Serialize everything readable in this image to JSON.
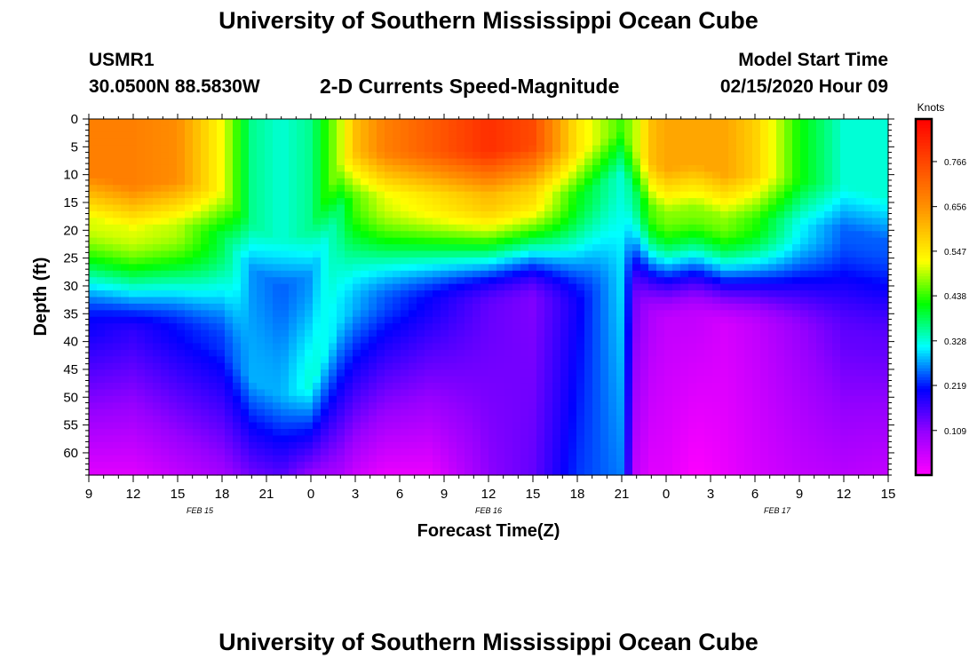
{
  "header": {
    "title_top": "University of Southern Mississippi Ocean Cube",
    "title_bottom": "University of Southern Mississippi Ocean Cube",
    "station_id": "USMR1",
    "station_coords": "30.0500N 88.5830W",
    "plot_subtitle": "2-D Currents Speed-Magnitude",
    "start_label": "Model Start Time",
    "start_value": "02/15/2020 Hour 09"
  },
  "chart_data": {
    "type": "heatmap",
    "title": "2-D Currents Speed-Magnitude",
    "xlabel": "Forecast Time(Z)",
    "ylabel": "Depth (ft)",
    "x_tick_labels": [
      "9",
      "12",
      "15",
      "18",
      "21",
      "0",
      "3",
      "6",
      "9",
      "12",
      "15",
      "18",
      "21",
      "0",
      "3",
      "6",
      "9",
      "12",
      "15"
    ],
    "date_labels": [
      {
        "text": "FEB 15",
        "hour_index": 7.5
      },
      {
        "text": "FEB 16",
        "hour_index": 27
      },
      {
        "text": "FEB 17",
        "hour_index": 46.5
      }
    ],
    "x_hours_range": [
      0,
      54
    ],
    "y_range": [
      0,
      64
    ],
    "y_ticks": [
      0,
      5,
      10,
      15,
      20,
      25,
      30,
      35,
      40,
      45,
      50,
      55,
      60
    ],
    "colorbar": {
      "label": "Knots",
      "range": [
        0.0,
        0.87
      ],
      "tick_labels": [
        "0.766",
        "0.656",
        "0.547",
        "0.438",
        "0.328",
        "0.219",
        "0.109"
      ],
      "tick_values": [
        0.766,
        0.656,
        0.547,
        0.438,
        0.328,
        0.219,
        0.109
      ]
    },
    "profiles": {
      "time_hours": [
        0,
        3,
        6,
        9,
        11,
        13,
        15,
        17,
        18,
        20,
        23,
        27,
        30,
        33,
        36,
        37,
        38,
        39,
        41,
        43,
        45,
        48,
        51,
        54
      ],
      "surface_speed": [
        0.68,
        0.68,
        0.66,
        0.52,
        0.36,
        0.33,
        0.36,
        0.5,
        0.6,
        0.68,
        0.73,
        0.8,
        0.76,
        0.55,
        0.44,
        0.5,
        0.6,
        0.63,
        0.63,
        0.63,
        0.58,
        0.42,
        0.33,
        0.33
      ],
      "mid_speed": [
        0.2,
        0.17,
        0.21,
        0.23,
        0.28,
        0.28,
        0.33,
        0.3,
        0.28,
        0.24,
        0.2,
        0.14,
        0.12,
        0.2,
        0.3,
        0.12,
        0.08,
        0.06,
        0.06,
        0.04,
        0.06,
        0.1,
        0.14,
        0.14
      ],
      "bottom_speed": [
        0.03,
        0.03,
        0.06,
        0.09,
        0.13,
        0.15,
        0.1,
        0.08,
        0.05,
        0.02,
        0.02,
        0.11,
        0.14,
        0.23,
        0.26,
        0.06,
        0.03,
        0.03,
        0.0,
        0.02,
        0.04,
        0.06,
        0.07,
        0.06
      ],
      "mixed_layer_depth_ft": [
        24,
        26,
        25,
        27,
        33,
        36,
        34,
        22,
        20,
        20,
        20,
        20,
        19,
        20,
        16,
        20,
        22,
        23,
        22,
        24,
        24,
        25,
        26,
        28
      ]
    }
  }
}
